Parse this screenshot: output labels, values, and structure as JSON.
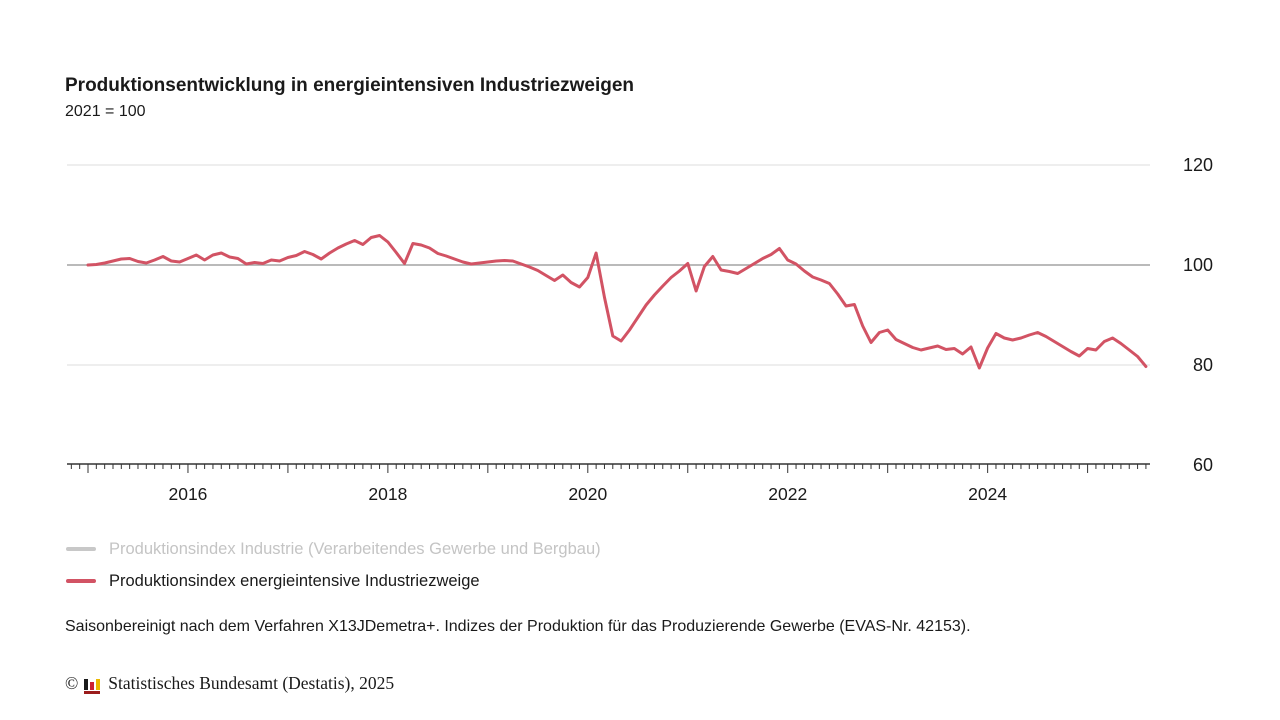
{
  "header": {
    "title": "Produktionsentwicklung in energieintensiven Industriezweigen",
    "subtitle": "2021 = 100"
  },
  "colors": {
    "line_energieintensiv": "#d25364",
    "legend_muted_swatch": "#c8c8c8",
    "legend_muted_text": "#c4c4c4",
    "grid": "#dcdcdc",
    "reference_line": "#a3a3a3",
    "axis": "#333333",
    "text": "#1a1a1a",
    "logo_black": "#1a1a1a",
    "logo_red": "#cc2233",
    "logo_yellow": "#eab800",
    "logo_base": "#9b1c1c"
  },
  "chart_data": {
    "type": "line",
    "title": "Produktionsentwicklung in energieintensiven Industriezweigen",
    "subtitle": "2021 = 100",
    "frequency": "monthly",
    "x_start": "2015-01",
    "x_end": "2025-08",
    "x_tick_labels": [
      "2016",
      "2018",
      "2020",
      "2022",
      "2024"
    ],
    "y_ticks": [
      120,
      100,
      80,
      60
    ],
    "ylim": [
      60,
      120
    ],
    "reference_line": 100,
    "grid": "horizontal-only",
    "legend_position": "bottom-left",
    "series": [
      {
        "name": "Produktionsindex Industrie (Verarbeitendes Gewerbe und Bergbau)",
        "color": "#c8c8c8",
        "state": "deactivated",
        "values": []
      },
      {
        "name": "Produktionsindex energieintensive Industriezweige",
        "color": "#d25364",
        "state": "visible",
        "values": [
          100.0,
          100.1,
          100.4,
          100.8,
          101.2,
          101.3,
          100.7,
          100.4,
          101.0,
          101.7,
          100.8,
          100.6,
          101.3,
          102.0,
          101.0,
          102.0,
          102.4,
          101.6,
          101.3,
          100.2,
          100.5,
          100.3,
          101.0,
          100.8,
          101.5,
          101.9,
          102.7,
          102.1,
          101.2,
          102.4,
          103.4,
          104.2,
          104.9,
          104.1,
          105.5,
          105.9,
          104.6,
          102.5,
          100.3,
          104.3,
          104.0,
          103.4,
          102.3,
          101.8,
          101.2,
          100.6,
          100.2,
          100.4,
          100.6,
          100.8,
          100.9,
          100.8,
          100.2,
          99.6,
          98.9,
          97.9,
          96.9,
          98.0,
          96.5,
          95.6,
          97.5,
          102.4,
          93.5,
          85.8,
          84.8,
          87.0,
          89.5,
          92.0,
          94.0,
          95.8,
          97.5,
          98.8,
          100.3,
          94.8,
          99.7,
          101.7,
          99.0,
          98.7,
          98.3,
          99.3,
          100.3,
          101.3,
          102.1,
          103.3,
          101.0,
          100.2,
          98.8,
          97.6,
          97.0,
          96.3,
          94.2,
          91.8,
          92.1,
          87.8,
          84.5,
          86.5,
          87.0,
          85.1,
          84.3,
          83.5,
          83.0,
          83.4,
          83.8,
          83.1,
          83.3,
          82.2,
          83.6,
          79.4,
          83.4,
          86.3,
          85.4,
          85.0,
          85.4,
          86.0,
          86.5,
          85.7,
          84.7,
          83.7,
          82.7,
          81.8,
          83.3,
          83.0,
          84.7,
          85.4,
          84.3,
          83.0,
          81.7,
          79.7
        ]
      }
    ]
  },
  "legend": {
    "items": [
      {
        "label": "Produktionsindex Industrie (Verarbeitendes Gewerbe und Bergbau)",
        "state": "deactivated"
      },
      {
        "label": "Produktionsindex energieintensive Industriezweige",
        "state": "active"
      }
    ]
  },
  "footnote": "Saisonbereinigt nach dem Verfahren X13JDemetra+. Indizes der Produktion für das Produzierende Gewerbe (EVAS-Nr. 42153).",
  "copyright": {
    "symbol": "©",
    "text": "Statistisches Bundesamt (Destatis), 2025"
  }
}
